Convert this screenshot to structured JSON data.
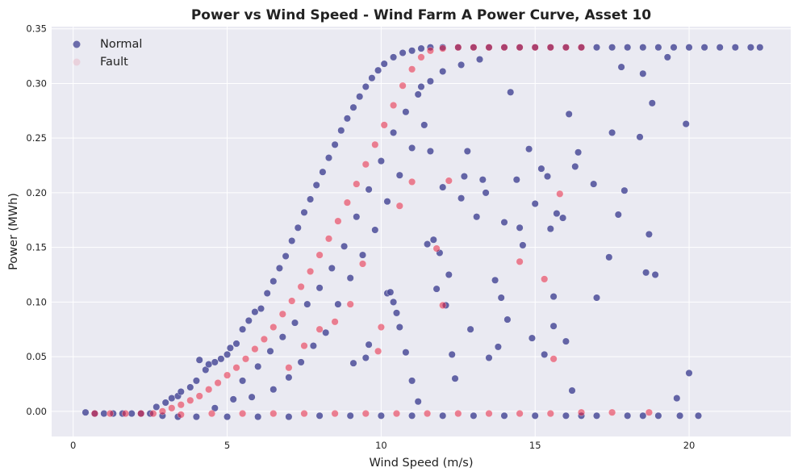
{
  "chart_data": {
    "type": "scatter",
    "title": "Power vs Wind Speed - Wind Farm A Power Curve, Asset 10",
    "xlabel": "Wind Speed (m/s)",
    "ylabel": "Power (MWh)",
    "xlim": [
      -0.7,
      23.3
    ],
    "ylim": [
      -0.023,
      0.352
    ],
    "xticks": [
      0,
      5,
      10,
      15,
      20
    ],
    "yticks": [
      0.0,
      0.05,
      0.1,
      0.15,
      0.2,
      0.25,
      0.3,
      0.35
    ],
    "xtick_labels": [
      "0",
      "5",
      "10",
      "15",
      "20"
    ],
    "ytick_labels": [
      "0.00",
      "0.05",
      "0.10",
      "0.15",
      "0.20",
      "0.25",
      "0.30",
      "0.35"
    ],
    "grid": true,
    "legend_position": "top-left",
    "background": "#eaeaf2",
    "series": [
      {
        "name": "Normal",
        "color": "#4b4c99",
        "marker": "circle",
        "points": [
          [
            0.4,
            -0.001
          ],
          [
            0.7,
            -0.002
          ],
          [
            1.0,
            -0.002
          ],
          [
            1.3,
            -0.002
          ],
          [
            1.6,
            -0.002
          ],
          [
            1.9,
            -0.002
          ],
          [
            2.2,
            -0.002
          ],
          [
            2.5,
            -0.002
          ],
          [
            2.7,
            0.004
          ],
          [
            3.0,
            0.008
          ],
          [
            3.2,
            0.012
          ],
          [
            3.4,
            0.014
          ],
          [
            3.5,
            0.018
          ],
          [
            3.8,
            0.022
          ],
          [
            4.0,
            0.028
          ],
          [
            4.1,
            0.047
          ],
          [
            4.3,
            0.038
          ],
          [
            4.4,
            0.043
          ],
          [
            4.6,
            0.045
          ],
          [
            4.8,
            0.048
          ],
          [
            5.0,
            0.052
          ],
          [
            5.1,
            0.058
          ],
          [
            5.3,
            0.062
          ],
          [
            5.5,
            0.075
          ],
          [
            5.7,
            0.083
          ],
          [
            5.9,
            0.091
          ],
          [
            6.1,
            0.094
          ],
          [
            6.3,
            0.108
          ],
          [
            6.5,
            0.119
          ],
          [
            6.7,
            0.131
          ],
          [
            6.9,
            0.142
          ],
          [
            7.1,
            0.156
          ],
          [
            7.3,
            0.168
          ],
          [
            7.5,
            0.182
          ],
          [
            7.7,
            0.194
          ],
          [
            7.9,
            0.207
          ],
          [
            8.1,
            0.219
          ],
          [
            8.3,
            0.232
          ],
          [
            8.5,
            0.244
          ],
          [
            8.7,
            0.257
          ],
          [
            8.9,
            0.268
          ],
          [
            9.1,
            0.278
          ],
          [
            9.3,
            0.288
          ],
          [
            9.5,
            0.297
          ],
          [
            9.7,
            0.305
          ],
          [
            9.9,
            0.312
          ],
          [
            10.1,
            0.318
          ],
          [
            10.4,
            0.324
          ],
          [
            10.7,
            0.328
          ],
          [
            11.0,
            0.33
          ],
          [
            11.3,
            0.332
          ],
          [
            11.6,
            0.333
          ],
          [
            12.0,
            0.333
          ],
          [
            12.5,
            0.333
          ],
          [
            13.0,
            0.333
          ],
          [
            13.5,
            0.333
          ],
          [
            14.0,
            0.333
          ],
          [
            14.5,
            0.333
          ],
          [
            15.0,
            0.333
          ],
          [
            15.5,
            0.333
          ],
          [
            16.0,
            0.333
          ],
          [
            16.5,
            0.333
          ],
          [
            17.0,
            0.333
          ],
          [
            17.5,
            0.333
          ],
          [
            18.0,
            0.333
          ],
          [
            18.5,
            0.333
          ],
          [
            19.0,
            0.333
          ],
          [
            19.5,
            0.333
          ],
          [
            20.0,
            0.333
          ],
          [
            20.5,
            0.333
          ],
          [
            21.0,
            0.333
          ],
          [
            21.5,
            0.333
          ],
          [
            22.0,
            0.333
          ],
          [
            22.3,
            0.333
          ],
          [
            5.5,
            0.028
          ],
          [
            6.0,
            0.041
          ],
          [
            6.4,
            0.055
          ],
          [
            6.8,
            0.068
          ],
          [
            7.2,
            0.081
          ],
          [
            7.6,
            0.098
          ],
          [
            8.0,
            0.113
          ],
          [
            8.4,
            0.131
          ],
          [
            8.8,
            0.151
          ],
          [
            9.2,
            0.178
          ],
          [
            9.6,
            0.203
          ],
          [
            10.0,
            0.229
          ],
          [
            10.4,
            0.255
          ],
          [
            10.8,
            0.274
          ],
          [
            11.2,
            0.29
          ],
          [
            11.6,
            0.302
          ],
          [
            12.0,
            0.311
          ],
          [
            12.6,
            0.317
          ],
          [
            13.2,
            0.322
          ],
          [
            4.6,
            0.003
          ],
          [
            5.2,
            0.011
          ],
          [
            5.8,
            0.013
          ],
          [
            6.5,
            0.02
          ],
          [
            7.0,
            0.031
          ],
          [
            7.4,
            0.045
          ],
          [
            7.8,
            0.06
          ],
          [
            8.2,
            0.072
          ],
          [
            8.6,
            0.098
          ],
          [
            9.0,
            0.122
          ],
          [
            9.4,
            0.143
          ],
          [
            9.8,
            0.166
          ],
          [
            10.2,
            0.192
          ],
          [
            10.6,
            0.216
          ],
          [
            11.0,
            0.241
          ],
          [
            11.4,
            0.262
          ],
          [
            9.1,
            0.044
          ],
          [
            9.5,
            0.049
          ],
          [
            9.6,
            0.061
          ],
          [
            10.2,
            0.108
          ],
          [
            10.3,
            0.109
          ],
          [
            10.4,
            0.1
          ],
          [
            10.5,
            0.09
          ],
          [
            10.6,
            0.077
          ],
          [
            11.0,
            0.028
          ],
          [
            11.2,
            0.009
          ],
          [
            11.5,
            0.153
          ],
          [
            11.7,
            0.157
          ],
          [
            11.9,
            0.145
          ],
          [
            12.0,
            0.205
          ],
          [
            12.2,
            0.125
          ],
          [
            12.3,
            0.052
          ],
          [
            12.4,
            0.03
          ],
          [
            12.6,
            0.195
          ],
          [
            12.8,
            0.238
          ],
          [
            12.9,
            0.075
          ],
          [
            13.1,
            0.178
          ],
          [
            13.3,
            0.212
          ],
          [
            13.5,
            0.049
          ],
          [
            13.7,
            0.12
          ],
          [
            13.9,
            0.104
          ],
          [
            14.1,
            0.084
          ],
          [
            14.2,
            0.292
          ],
          [
            14.4,
            0.212
          ],
          [
            14.5,
            0.168
          ],
          [
            14.8,
            0.24
          ],
          [
            15.0,
            0.19
          ],
          [
            15.2,
            0.222
          ],
          [
            15.4,
            0.215
          ],
          [
            15.6,
            0.105
          ],
          [
            15.7,
            0.181
          ],
          [
            15.9,
            0.177
          ],
          [
            16.0,
            0.064
          ],
          [
            16.2,
            0.019
          ],
          [
            16.3,
            0.224
          ],
          [
            16.9,
            0.208
          ],
          [
            17.0,
            0.104
          ],
          [
            17.4,
            0.141
          ],
          [
            17.5,
            0.255
          ],
          [
            17.7,
            0.18
          ],
          [
            17.9,
            0.202
          ],
          [
            18.4,
            0.251
          ],
          [
            18.6,
            0.127
          ],
          [
            18.7,
            0.162
          ],
          [
            18.9,
            0.125
          ],
          [
            19.9,
            0.263
          ],
          [
            20.0,
            0.035
          ],
          [
            19.6,
            0.012
          ],
          [
            11.3,
            0.297
          ],
          [
            11.6,
            0.238
          ],
          [
            12.7,
            0.215
          ],
          [
            13.4,
            0.2
          ],
          [
            14.0,
            0.173
          ],
          [
            14.6,
            0.152
          ],
          [
            15.5,
            0.167
          ],
          [
            15.6,
            0.078
          ],
          [
            16.1,
            0.272
          ],
          [
            16.4,
            0.237
          ],
          [
            17.8,
            0.315
          ],
          [
            18.8,
            0.282
          ],
          [
            18.5,
            0.309
          ],
          [
            19.3,
            0.324
          ],
          [
            14.9,
            0.067
          ],
          [
            15.3,
            0.052
          ],
          [
            13.8,
            0.059
          ],
          [
            12.1,
            0.097
          ],
          [
            10.8,
            0.054
          ],
          [
            11.8,
            0.112
          ],
          [
            2.9,
            -0.004
          ],
          [
            3.4,
            -0.005
          ],
          [
            4.0,
            -0.005
          ],
          [
            5.0,
            -0.005
          ],
          [
            6.0,
            -0.005
          ],
          [
            7.0,
            -0.005
          ],
          [
            8.0,
            -0.004
          ],
          [
            9.0,
            -0.004
          ],
          [
            10.0,
            -0.004
          ],
          [
            11.0,
            -0.004
          ],
          [
            12.0,
            -0.004
          ],
          [
            13.0,
            -0.004
          ],
          [
            14.0,
            -0.004
          ],
          [
            15.0,
            -0.004
          ],
          [
            16.0,
            -0.004
          ],
          [
            16.5,
            -0.004
          ],
          [
            17.0,
            -0.004
          ],
          [
            18.0,
            -0.004
          ],
          [
            18.5,
            -0.004
          ],
          [
            19.0,
            -0.004
          ],
          [
            19.7,
            -0.004
          ],
          [
            20.3,
            -0.004
          ]
        ]
      },
      {
        "name": "Fault",
        "color": "#e8223f",
        "marker": "circle",
        "points": [
          [
            0.7,
            -0.002
          ],
          [
            1.2,
            -0.002
          ],
          [
            1.7,
            -0.002
          ],
          [
            2.2,
            -0.002
          ],
          [
            2.6,
            -0.002
          ],
          [
            2.9,
            0.0
          ],
          [
            3.2,
            0.003
          ],
          [
            3.5,
            0.006
          ],
          [
            3.8,
            0.01
          ],
          [
            4.1,
            0.014
          ],
          [
            4.4,
            0.02
          ],
          [
            4.7,
            0.026
          ],
          [
            5.0,
            0.033
          ],
          [
            5.3,
            0.04
          ],
          [
            5.6,
            0.048
          ],
          [
            5.9,
            0.057
          ],
          [
            6.2,
            0.066
          ],
          [
            6.5,
            0.077
          ],
          [
            6.8,
            0.089
          ],
          [
            7.1,
            0.101
          ],
          [
            7.4,
            0.114
          ],
          [
            7.7,
            0.128
          ],
          [
            8.0,
            0.143
          ],
          [
            8.3,
            0.158
          ],
          [
            8.6,
            0.174
          ],
          [
            8.9,
            0.191
          ],
          [
            9.2,
            0.208
          ],
          [
            9.5,
            0.226
          ],
          [
            9.8,
            0.244
          ],
          [
            10.1,
            0.262
          ],
          [
            10.4,
            0.28
          ],
          [
            10.7,
            0.298
          ],
          [
            11.0,
            0.313
          ],
          [
            11.3,
            0.324
          ],
          [
            11.6,
            0.33
          ],
          [
            12.0,
            0.332
          ],
          [
            12.5,
            0.333
          ],
          [
            13.0,
            0.333
          ],
          [
            13.5,
            0.333
          ],
          [
            14.0,
            0.333
          ],
          [
            14.5,
            0.333
          ],
          [
            15.0,
            0.333
          ],
          [
            15.5,
            0.333
          ],
          [
            16.0,
            0.333
          ],
          [
            16.5,
            0.333
          ],
          [
            3.5,
            -0.003
          ],
          [
            4.5,
            -0.002
          ],
          [
            5.5,
            -0.002
          ],
          [
            6.5,
            -0.002
          ],
          [
            7.5,
            -0.002
          ],
          [
            8.5,
            -0.002
          ],
          [
            9.5,
            -0.002
          ],
          [
            10.5,
            -0.002
          ],
          [
            11.5,
            -0.002
          ],
          [
            12.5,
            -0.002
          ],
          [
            13.5,
            -0.002
          ],
          [
            14.5,
            -0.002
          ],
          [
            15.5,
            -0.002
          ],
          [
            16.5,
            -0.001
          ],
          [
            17.5,
            -0.001
          ],
          [
            18.7,
            -0.001
          ],
          [
            7.0,
            0.04
          ],
          [
            7.5,
            0.06
          ],
          [
            8.0,
            0.075
          ],
          [
            8.5,
            0.082
          ],
          [
            9.0,
            0.098
          ],
          [
            9.4,
            0.135
          ],
          [
            10.0,
            0.077
          ],
          [
            10.6,
            0.188
          ],
          [
            11.0,
            0.21
          ],
          [
            11.8,
            0.149
          ],
          [
            12.2,
            0.211
          ],
          [
            12.0,
            0.097
          ],
          [
            14.5,
            0.137
          ],
          [
            15.3,
            0.121
          ],
          [
            15.6,
            0.048
          ],
          [
            15.8,
            0.199
          ],
          [
            9.9,
            0.055
          ]
        ]
      }
    ]
  }
}
